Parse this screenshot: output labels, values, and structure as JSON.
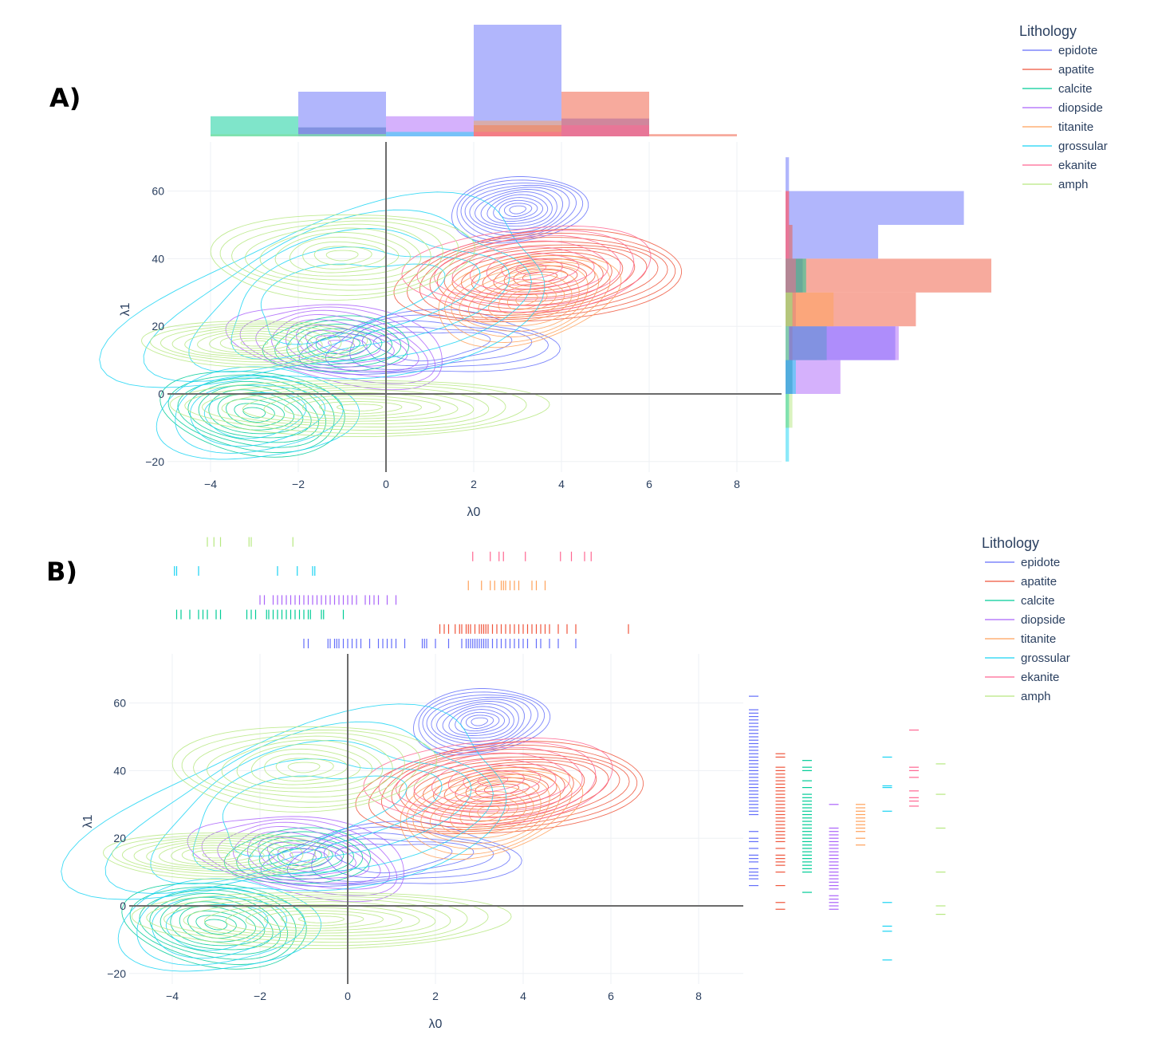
{
  "chart_data": [
    {
      "panel": "A)",
      "type": "contour",
      "marginal_x": "histogram",
      "marginal_y": "histogram",
      "xlabel": "λ0",
      "ylabel": "λ1",
      "xlim": [
        -5,
        9
      ],
      "ylim": [
        -25,
        75
      ],
      "x_ticks": [
        -4,
        -2,
        0,
        2,
        4,
        6,
        8
      ],
      "y_ticks": [
        -20,
        0,
        20,
        40,
        60
      ],
      "legend_title": "Lithology",
      "series": [
        {
          "name": "epidote",
          "color": "#636efa",
          "center": [
            3.0,
            54.5
          ]
        },
        {
          "name": "apatite",
          "color": "#ef553b",
          "center": [
            3.5,
            34.5
          ]
        },
        {
          "name": "calcite",
          "color": "#00cc96",
          "center": [
            -3.0,
            -5.5
          ]
        },
        {
          "name": "diopside",
          "color": "#ab63fa",
          "center": [
            -1.0,
            14.5
          ]
        },
        {
          "name": "titanite",
          "color": "#ffa15a",
          "center": [
            3.2,
            28.0
          ]
        },
        {
          "name": "grossular",
          "color": "#19d3f3",
          "center": [
            -1.0,
            18.0
          ]
        },
        {
          "name": "ekanite",
          "color": "#ff6692",
          "center": [
            3.3,
            37.0
          ]
        },
        {
          "name": "amph",
          "color": "#b6e880",
          "center": [
            -1.0,
            30.0
          ]
        }
      ],
      "hist_x": {
        "bins": [
          [
            -4,
            -2
          ],
          [
            -2,
            0
          ],
          [
            0,
            2
          ],
          [
            2,
            4
          ],
          [
            4,
            6
          ],
          [
            6,
            8
          ]
        ],
        "counts": {
          "epidote": [
            0,
            20,
            0,
            50,
            8,
            0
          ],
          "apatite": [
            0,
            0,
            0,
            5,
            20,
            1
          ],
          "calcite": [
            9,
            4,
            0,
            0,
            0,
            0
          ],
          "diopside": [
            0,
            4,
            9,
            0,
            0,
            0
          ],
          "titanite": [
            0,
            0,
            0,
            7,
            0,
            0
          ],
          "grossular": [
            1,
            1,
            2,
            0,
            0,
            0
          ],
          "ekanite": [
            0,
            0,
            0,
            2,
            5,
            0
          ],
          "amph": [
            1,
            1,
            0,
            0,
            0,
            0
          ]
        }
      },
      "hist_y": {
        "bins": [
          [
            60,
            70
          ],
          [
            50,
            60
          ],
          [
            40,
            50
          ],
          [
            30,
            40
          ],
          [
            20,
            30
          ],
          [
            10,
            20
          ],
          [
            0,
            10
          ],
          [
            -10,
            0
          ],
          [
            -20,
            -10
          ]
        ],
        "counts": {
          "epidote": [
            1,
            52,
            27,
            5,
            3,
            32,
            2,
            0,
            0
          ],
          "apatite": [
            0,
            1,
            2,
            60,
            38,
            2,
            2,
            0,
            0
          ],
          "calcite": [
            0,
            0,
            0,
            6,
            2,
            12,
            2,
            1,
            0
          ],
          "diopside": [
            0,
            0,
            0,
            0,
            0,
            33,
            16,
            0,
            0
          ],
          "titanite": [
            0,
            0,
            0,
            0,
            14,
            0,
            0,
            0,
            0
          ],
          "grossular": [
            0,
            0,
            0,
            0,
            0,
            1,
            3,
            1,
            1
          ],
          "ekanite": [
            0,
            1,
            1,
            3,
            0,
            0,
            0,
            0,
            0
          ],
          "amph": [
            0,
            0,
            0,
            0,
            2,
            1,
            0,
            2,
            0
          ]
        }
      }
    },
    {
      "panel": "B)",
      "type": "contour",
      "marginal_x": "rug",
      "marginal_y": "rug",
      "xlabel": "λ0",
      "ylabel": "λ1",
      "xlim": [
        -5,
        9
      ],
      "ylim": [
        -25,
        75
      ],
      "x_ticks": [
        -4,
        -2,
        0,
        2,
        4,
        6,
        8
      ],
      "y_ticks": [
        -20,
        0,
        20,
        40,
        60
      ],
      "legend_title": "Lithology",
      "series": [
        {
          "name": "epidote",
          "color": "#636efa",
          "rug_x": [
            -1.0,
            -0.9,
            -0.45,
            -0.4,
            -0.3,
            -0.25,
            -0.2,
            -0.1,
            0.0,
            0.1,
            0.2,
            0.3,
            0.5,
            0.7,
            0.8,
            0.9,
            1.0,
            1.1,
            1.3,
            1.7,
            1.75,
            1.8,
            2.0,
            2.3,
            2.6,
            2.7,
            2.75,
            2.8,
            2.85,
            2.9,
            2.95,
            3.0,
            3.05,
            3.1,
            3.15,
            3.2,
            3.3,
            3.4,
            3.5,
            3.6,
            3.7,
            3.8,
            3.9,
            4.0,
            4.1,
            4.3,
            4.4,
            4.6,
            4.8,
            5.2
          ],
          "rug_y": [
            62,
            58,
            57,
            56,
            55,
            54,
            53,
            52,
            51,
            50,
            49,
            48,
            47,
            46,
            45,
            44,
            43,
            42,
            41,
            40,
            39,
            38,
            37,
            36,
            35,
            34,
            33,
            32,
            31,
            30,
            29,
            28,
            27,
            22,
            20,
            19,
            17,
            15,
            14,
            13,
            11,
            10,
            9,
            8,
            6
          ]
        },
        {
          "name": "apatite",
          "color": "#ef553b",
          "rug_x": [
            2.1,
            2.2,
            2.3,
            2.45,
            2.55,
            2.6,
            2.7,
            2.75,
            2.8,
            2.9,
            3.0,
            3.05,
            3.1,
            3.15,
            3.2,
            3.3,
            3.4,
            3.5,
            3.6,
            3.7,
            3.8,
            3.9,
            4.0,
            4.1,
            4.2,
            4.3,
            4.4,
            4.5,
            4.6,
            4.8,
            5.0,
            5.2,
            6.4
          ],
          "rug_y": [
            45,
            44,
            41,
            40,
            39,
            38,
            37,
            36,
            35,
            34,
            33,
            32,
            31,
            30,
            29,
            28,
            27,
            26,
            25,
            24,
            23,
            22,
            21,
            20,
            19,
            17,
            15,
            14,
            13,
            12,
            10,
            6,
            1,
            -1
          ]
        },
        {
          "name": "calcite",
          "color": "#00cc96",
          "rug_x": [
            -3.9,
            -3.8,
            -3.6,
            -3.4,
            -3.3,
            -3.2,
            -3.0,
            -2.9,
            -2.3,
            -2.2,
            -2.1,
            -1.85,
            -1.8,
            -1.7,
            -1.6,
            -1.5,
            -1.4,
            -1.3,
            -1.2,
            -1.1,
            -1.0,
            -0.9,
            -0.85,
            -0.6,
            -0.55,
            -0.1
          ],
          "rug_y": [
            43,
            41,
            40,
            37,
            35,
            33,
            32,
            31,
            30,
            29,
            28,
            27,
            26,
            25,
            24,
            23,
            22,
            21,
            20,
            19,
            18,
            17,
            16,
            15,
            14,
            13,
            12,
            11,
            10,
            4
          ]
        },
        {
          "name": "diopside",
          "color": "#ab63fa",
          "rug_x": [
            -2.0,
            -1.9,
            -1.7,
            -1.6,
            -1.5,
            -1.4,
            -1.3,
            -1.2,
            -1.1,
            -1.0,
            -0.9,
            -0.8,
            -0.7,
            -0.6,
            -0.5,
            -0.4,
            -0.3,
            -0.2,
            -0.1,
            0.0,
            0.1,
            0.2,
            0.4,
            0.5,
            0.6,
            0.7,
            0.9,
            1.1
          ],
          "rug_y": [
            30,
            23,
            22,
            21,
            20,
            19,
            18,
            17,
            16,
            15,
            14,
            13,
            12,
            11,
            10,
            9,
            8,
            7,
            6,
            5,
            3,
            2,
            1,
            0,
            -1
          ]
        },
        {
          "name": "titanite",
          "color": "#ffa15a",
          "rug_x": [
            2.75,
            3.05,
            3.25,
            3.35,
            3.5,
            3.55,
            3.6,
            3.7,
            3.8,
            3.9,
            4.2,
            4.3,
            4.5
          ],
          "rug_y": [
            30,
            29,
            28,
            27,
            26,
            25,
            24,
            23,
            22,
            20,
            18
          ]
        },
        {
          "name": "grossular",
          "color": "#19d3f3",
          "rug_x": [
            -3.95,
            -3.9,
            -3.4,
            -1.6,
            -1.15,
            -0.8,
            -0.75
          ],
          "rug_y": [
            44,
            35.5,
            35,
            28,
            1,
            -6,
            -7.5,
            -16
          ]
        },
        {
          "name": "ekanite",
          "color": "#ff6692",
          "rug_x": [
            2.85,
            3.25,
            3.45,
            3.55,
            4.05,
            4.85,
            5.1,
            5.4,
            5.55
          ],
          "rug_y": [
            52,
            41,
            40,
            38,
            34,
            32,
            31,
            29.5
          ]
        },
        {
          "name": "amph",
          "color": "#b6e880",
          "rug_x": [
            -3.2,
            -3.05,
            -2.9,
            -2.25,
            -2.2,
            -1.25
          ],
          "rug_y": [
            42,
            33,
            23,
            10,
            0,
            -2.5
          ]
        }
      ]
    }
  ]
}
